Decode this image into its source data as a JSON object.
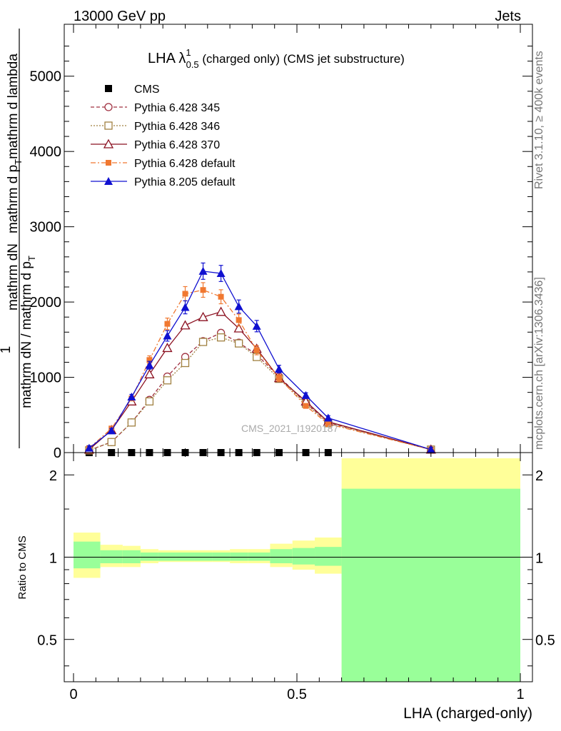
{
  "header": {
    "left": "13000 GeV pp",
    "right": "Jets"
  },
  "side": {
    "rivet": "Rivet 3.1.10, ≥ 400k events",
    "mcplots": "mcplots.cern.ch [arXiv:1306.3436]"
  },
  "chart_data": [
    {
      "type": "line",
      "title_main": "LHA λ",
      "title_sup": "1",
      "title_sub": "0.5",
      "title_rest": " (charged only) (CMS jet substructure)",
      "watermark": "CMS_2021_I1920187",
      "ylabel_parts": [
        "mathrm d",
        "N",
        "mathrm d p",
        "T",
        "mathrm d lambda"
      ],
      "ylabel_den": "mathrm dN / mathrm d p",
      "ylabel_den_sub": "T",
      "ylabel_one": "1",
      "ylabel": "1 / (mathrm dN / mathrm d p_T) · mathrm d^2N / (mathrm d p_T mathrm d lambda)",
      "ylim": [
        0,
        5500
      ],
      "yticks": [
        {
          "v": 0,
          "label": "0"
        },
        {
          "v": 1000,
          "label": "1000"
        },
        {
          "v": 2000,
          "label": "2000"
        },
        {
          "v": 3000,
          "label": "3000"
        },
        {
          "v": 4000,
          "label": "4000"
        },
        {
          "v": 5000,
          "label": "5000"
        }
      ],
      "xlim": [
        0,
        1
      ],
      "series": [
        {
          "name": "CMS",
          "color": "#000000",
          "marker": "square-filled",
          "line": "none",
          "x": [
            0.035,
            0.085,
            0.13,
            0.17,
            0.21,
            0.25,
            0.29,
            0.33,
            0.37,
            0.41,
            0.46,
            0.52,
            0.57
          ],
          "y": [
            0,
            0,
            0,
            0,
            0,
            0,
            0,
            0,
            0,
            0,
            0,
            0,
            0
          ]
        },
        {
          "name": "Pythia 6.428 345",
          "color": "#a03040",
          "marker": "circle-open",
          "line": "dashed",
          "x": [
            0.035,
            0.085,
            0.13,
            0.17,
            0.21,
            0.25,
            0.29,
            0.33,
            0.37,
            0.41,
            0.46,
            0.52,
            0.57,
            0.8
          ],
          "y": [
            30,
            140,
            400,
            700,
            1010,
            1270,
            1480,
            1590,
            1460,
            1300,
            1010,
            660,
            400,
            40
          ]
        },
        {
          "name": "Pythia 6.428 346",
          "color": "#a08040",
          "marker": "square-open",
          "line": "dotted",
          "x": [
            0.035,
            0.085,
            0.13,
            0.17,
            0.21,
            0.25,
            0.29,
            0.33,
            0.37,
            0.41,
            0.46,
            0.52,
            0.57,
            0.8
          ],
          "y": [
            30,
            140,
            400,
            680,
            960,
            1190,
            1470,
            1530,
            1450,
            1270,
            980,
            650,
            390,
            40
          ]
        },
        {
          "name": "Pythia 6.428 370",
          "color": "#8b1020",
          "marker": "triangle-open",
          "line": "solid",
          "x": [
            0.035,
            0.085,
            0.13,
            0.17,
            0.21,
            0.25,
            0.29,
            0.33,
            0.37,
            0.41,
            0.46,
            0.52,
            0.57,
            0.8
          ],
          "y": [
            40,
            300,
            680,
            1040,
            1390,
            1690,
            1800,
            1870,
            1650,
            1380,
            990,
            680,
            410,
            40
          ]
        },
        {
          "name": "Pythia 6.428 default",
          "color": "#f07830",
          "marker": "square-filled-small",
          "line": "dashdot",
          "x": [
            0.035,
            0.085,
            0.13,
            0.17,
            0.21,
            0.25,
            0.29,
            0.33,
            0.37,
            0.41,
            0.46,
            0.52,
            0.57,
            0.8
          ],
          "y": [
            60,
            320,
            720,
            1230,
            1710,
            2110,
            2160,
            2070,
            1760,
            1360,
            990,
            620,
            380,
            40
          ]
        },
        {
          "name": "Pythia 8.205 default",
          "color": "#1010d0",
          "marker": "triangle-filled",
          "line": "solid",
          "x": [
            0.035,
            0.085,
            0.13,
            0.17,
            0.21,
            0.25,
            0.29,
            0.33,
            0.37,
            0.41,
            0.46,
            0.52,
            0.57,
            0.8
          ],
          "y": [
            60,
            290,
            740,
            1160,
            1550,
            1930,
            2410,
            2380,
            1940,
            1680,
            1110,
            760,
            460,
            40
          ]
        }
      ]
    },
    {
      "type": "area",
      "ylabel": "Ratio to CMS",
      "yscale": "log",
      "ylim": [
        0.35,
        2.3
      ],
      "yticks": [
        {
          "v": 0.5,
          "label": "0.5"
        },
        {
          "v": 1,
          "label": "1"
        },
        {
          "v": 2,
          "label": "2"
        }
      ],
      "xlim": [
        0,
        1
      ],
      "xticks": [
        {
          "v": 0,
          "label": "0"
        },
        {
          "v": 0.5,
          "label": "0.5"
        },
        {
          "v": 1,
          "label": "1"
        }
      ],
      "xlabel": "LHA (charged-only)",
      "bands": [
        {
          "x0": 0.0,
          "x1": 0.06,
          "y1lo": 0.84,
          "y1hi": 1.23,
          "y2lo": 0.91,
          "y2hi": 1.14
        },
        {
          "x0": 0.06,
          "x1": 0.11,
          "y1lo": 0.92,
          "y1hi": 1.11,
          "y2lo": 0.95,
          "y2hi": 1.06
        },
        {
          "x0": 0.11,
          "x1": 0.15,
          "y1lo": 0.92,
          "y1hi": 1.1,
          "y2lo": 0.95,
          "y2hi": 1.06
        },
        {
          "x0": 0.15,
          "x1": 0.19,
          "y1lo": 0.95,
          "y1hi": 1.07,
          "y2lo": 0.97,
          "y2hi": 1.04
        },
        {
          "x0": 0.19,
          "x1": 0.23,
          "y1lo": 0.96,
          "y1hi": 1.06,
          "y2lo": 0.97,
          "y2hi": 1.04
        },
        {
          "x0": 0.23,
          "x1": 0.27,
          "y1lo": 0.96,
          "y1hi": 1.06,
          "y2lo": 0.97,
          "y2hi": 1.04
        },
        {
          "x0": 0.27,
          "x1": 0.31,
          "y1lo": 0.96,
          "y1hi": 1.06,
          "y2lo": 0.97,
          "y2hi": 1.04
        },
        {
          "x0": 0.31,
          "x1": 0.35,
          "y1lo": 0.96,
          "y1hi": 1.06,
          "y2lo": 0.97,
          "y2hi": 1.04
        },
        {
          "x0": 0.35,
          "x1": 0.39,
          "y1lo": 0.95,
          "y1hi": 1.07,
          "y2lo": 0.97,
          "y2hi": 1.04
        },
        {
          "x0": 0.39,
          "x1": 0.44,
          "y1lo": 0.95,
          "y1hi": 1.07,
          "y2lo": 0.97,
          "y2hi": 1.04
        },
        {
          "x0": 0.44,
          "x1": 0.49,
          "y1lo": 0.92,
          "y1hi": 1.12,
          "y2lo": 0.95,
          "y2hi": 1.07
        },
        {
          "x0": 0.49,
          "x1": 0.54,
          "y1lo": 0.9,
          "y1hi": 1.15,
          "y2lo": 0.94,
          "y2hi": 1.08
        },
        {
          "x0": 0.54,
          "x1": 0.6,
          "y1lo": 0.87,
          "y1hi": 1.18,
          "y2lo": 0.93,
          "y2hi": 1.09
        },
        {
          "x0": 0.6,
          "x1": 1.0,
          "y1lo": 0.35,
          "y1hi": 2.3,
          "y2lo": 0.35,
          "y2hi": 1.78
        }
      ],
      "band_colors": {
        "outer": "#ffff99",
        "inner": "#99ff99"
      }
    }
  ]
}
